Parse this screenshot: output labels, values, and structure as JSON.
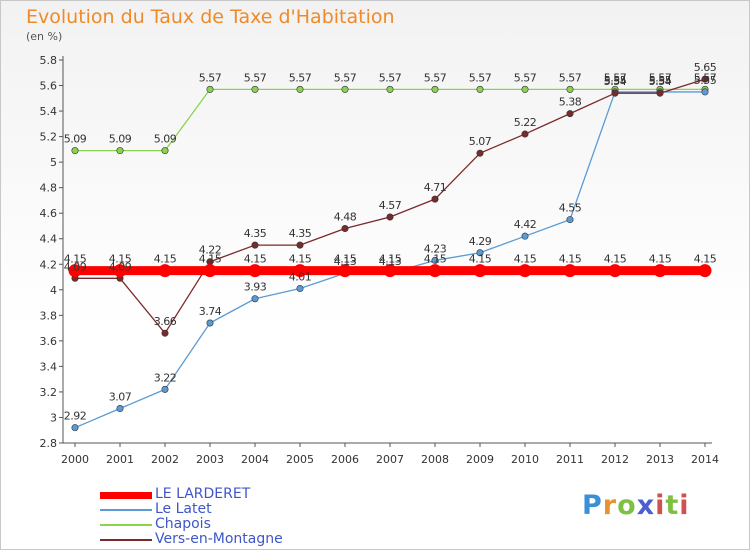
{
  "header": {
    "title": "Evolution du Taux de Taxe d'Habitation",
    "unit": "(en %)"
  },
  "logo": {
    "text": "Proxiti"
  },
  "chart_data": {
    "type": "line",
    "title": "Evolution du Taux de Taxe d'Habitation",
    "ylabel": "(en %)",
    "xlabel": "",
    "x": [
      "2000",
      "2001",
      "2002",
      "2003",
      "2004",
      "2005",
      "2006",
      "2007",
      "2008",
      "2009",
      "2010",
      "2011",
      "2012",
      "2013",
      "2014"
    ],
    "ylim": [
      2.8,
      5.8
    ],
    "yticks": [
      2.8,
      3,
      3.2,
      3.4,
      3.6,
      3.8,
      4,
      4.2,
      4.4,
      4.6,
      4.8,
      5,
      5.2,
      5.4,
      5.6,
      5.8
    ],
    "yticklabels": [
      "2.8",
      "3",
      "3.2",
      "3.4",
      "3.6",
      "3.8",
      "4",
      "4.2",
      "4.4",
      "4.6",
      "4.8",
      "5",
      "5.2",
      "5.4",
      "5.6",
      "5.8"
    ],
    "grid": false,
    "legend": "bottom-left",
    "series": [
      {
        "name": "LE LARDERET",
        "color": "#ff0000",
        "values": [
          4.15,
          4.15,
          4.15,
          4.15,
          4.15,
          4.15,
          4.15,
          4.15,
          4.15,
          4.15,
          4.15,
          4.15,
          4.15,
          4.15,
          4.15
        ],
        "labels": [
          "4.15",
          "4.15",
          "4.15",
          "4.15",
          "4.15",
          "4.15",
          "4.15",
          "4.15",
          "4.15",
          "4.15",
          "4.15",
          "4.15",
          "4.15",
          "4.15",
          "4.15"
        ]
      },
      {
        "name": "Le Latet",
        "color": "#5b9bd5",
        "values": [
          2.92,
          3.07,
          3.22,
          3.74,
          3.93,
          4.01,
          4.13,
          4.13,
          4.23,
          4.29,
          4.42,
          4.55,
          5.55,
          5.55,
          5.55
        ],
        "labels": [
          "2.92",
          "3.07",
          "3.22",
          "3.74",
          "3.93",
          "4.01",
          "4.13",
          "4.13",
          "4.23",
          "4.29",
          "4.42",
          "4.55",
          "5.55",
          "5.55",
          "5.55"
        ]
      },
      {
        "name": "Chapois",
        "color": "#8cd450",
        "values": [
          5.09,
          5.09,
          5.09,
          5.57,
          5.57,
          5.57,
          5.57,
          5.57,
          5.57,
          5.57,
          5.57,
          5.57,
          5.57,
          5.57,
          5.57
        ],
        "labels": [
          "5.09",
          "5.09",
          "5.09",
          "5.57",
          "5.57",
          "5.57",
          "5.57",
          "5.57",
          "5.57",
          "5.57",
          "5.57",
          "5.57",
          "5.57",
          "5.57",
          "5.57"
        ]
      },
      {
        "name": "Vers-en-Montagne",
        "color": "#7a2a2a",
        "values": [
          4.09,
          4.09,
          3.66,
          4.22,
          4.35,
          4.35,
          4.48,
          4.57,
          4.71,
          5.07,
          5.22,
          5.38,
          5.54,
          5.54,
          5.65
        ],
        "labels": [
          "4.09",
          "4.09",
          "3.66",
          "4.22",
          "4.35",
          "4.35",
          "4.48",
          "4.57",
          "4.71",
          "5.07",
          "5.22",
          "5.38",
          "5.54",
          "5.54",
          "5.65"
        ]
      }
    ]
  }
}
